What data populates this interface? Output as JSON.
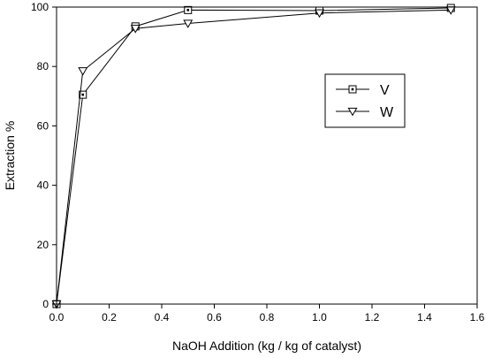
{
  "chart_data": {
    "type": "line",
    "xlabel": "NaOH Addition (kg / kg of catalyst)",
    "ylabel": "Extraction %",
    "xlim": [
      0.0,
      1.6
    ],
    "ylim": [
      0,
      100
    ],
    "xticks": [
      "0.0",
      "0.2",
      "0.4",
      "0.6",
      "0.8",
      "1.0",
      "1.2",
      "1.4",
      "1.6"
    ],
    "yticks": [
      "0",
      "20",
      "40",
      "60",
      "80",
      "100"
    ],
    "grid": false,
    "legend_position": "right",
    "series": [
      {
        "name": "V",
        "marker": "square-dot",
        "x": [
          0.0,
          0.1,
          0.3,
          0.5,
          1.0,
          1.5
        ],
        "y": [
          0,
          70.5,
          93.5,
          99,
          98.8,
          99.7
        ]
      },
      {
        "name": "W",
        "marker": "triangle-down",
        "x": [
          0.0,
          0.1,
          0.3,
          0.5,
          1.0,
          1.5
        ],
        "y": [
          0,
          78.5,
          92.8,
          94.5,
          98.0,
          99.0
        ]
      }
    ]
  }
}
